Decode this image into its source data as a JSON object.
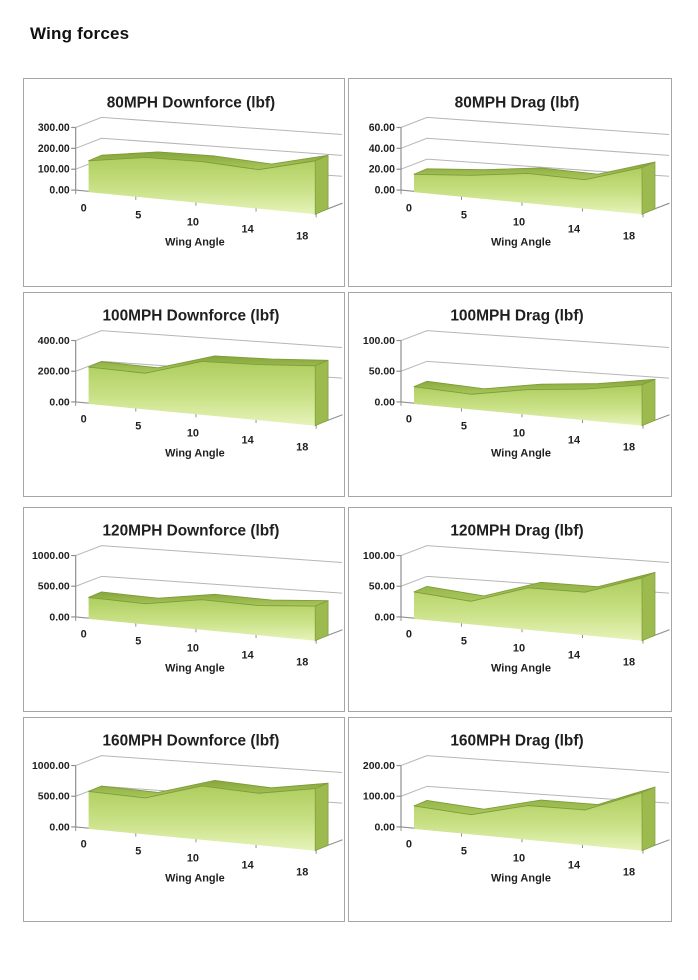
{
  "page": {
    "title": "Wing forces"
  },
  "axis": {
    "xlabel": "Wing Angle",
    "categories": [
      "0",
      "5",
      "10",
      "14",
      "18"
    ]
  },
  "colors": {
    "band_dark": "#85a63c",
    "band_light": "#a9c75b",
    "face_top": "#aecd5e",
    "face_mid": "#c9e186",
    "face_bottom": "#e6f3b9",
    "side_face": "#9cba4e",
    "series_outline": "#7e9c39",
    "gridline": "#b6b6b6",
    "axis_line": "#8f8f8f",
    "text": "#1f1f1f",
    "chart_border": "#a6a6a6"
  },
  "chart_data": [
    {
      "type": "area",
      "title": "80MPH Downforce (lbf)",
      "x": [
        0,
        5,
        10,
        14,
        18
      ],
      "values": [
        150,
        180,
        175,
        155,
        200
      ],
      "y_tick_labels": [
        "0.00",
        "100.00",
        "200.00",
        "300.00"
      ],
      "ymax": 300,
      "ylim": [
        0,
        300
      ],
      "xlabel": "Wing Angle",
      "legend": "none",
      "grid": true
    },
    {
      "type": "area",
      "title": "80MPH Drag (lbf)",
      "x": [
        0,
        5,
        10,
        14,
        18
      ],
      "values": [
        17,
        20,
        25,
        23,
        35
      ],
      "y_tick_labels": [
        "0.00",
        "20.00",
        "40.00",
        "60.00"
      ],
      "ymax": 60,
      "ylim": [
        0,
        60
      ],
      "xlabel": "Wing Angle",
      "legend": "none",
      "grid": true
    },
    {
      "type": "area",
      "title": "100MPH Downforce (lbf)",
      "x": [
        0,
        5,
        10,
        14,
        18
      ],
      "values": [
        240,
        220,
        305,
        300,
        305
      ],
      "y_tick_labels": [
        "0.00",
        "200.00",
        "400.00"
      ],
      "ymax": 400,
      "ylim": [
        0,
        400
      ],
      "xlabel": "Wing Angle",
      "legend": "none",
      "grid": true
    },
    {
      "type": "area",
      "title": "100MPH Drag (lbf)",
      "x": [
        0,
        5,
        10,
        14,
        18
      ],
      "values": [
        28,
        23,
        36,
        42,
        52
      ],
      "y_tick_labels": [
        "0.00",
        "50.00",
        "100.00"
      ],
      "ymax": 100,
      "ylim": [
        0,
        100
      ],
      "xlabel": "Wing Angle",
      "legend": "none",
      "grid": true
    },
    {
      "type": "area",
      "title": "120MPH Downforce (lbf)",
      "x": [
        0,
        5,
        10,
        14,
        18
      ],
      "values": [
        350,
        315,
        430,
        400,
        440
      ],
      "y_tick_labels": [
        "0.00",
        "500.00",
        "1000.00"
      ],
      "ymax": 1000,
      "ylim": [
        0,
        1000
      ],
      "xlabel": "Wing Angle",
      "legend": "none",
      "grid": true
    },
    {
      "type": "area",
      "title": "120MPH Drag (lbf)",
      "x": [
        0,
        5,
        10,
        14,
        18
      ],
      "values": [
        44,
        35,
        60,
        58,
        80
      ],
      "y_tick_labels": [
        "0.00",
        "50.00",
        "100.00"
      ],
      "ymax": 100,
      "ylim": [
        0,
        100
      ],
      "xlabel": "Wing Angle",
      "legend": "none",
      "grid": true
    },
    {
      "type": "area",
      "title": "160MPH Downforce (lbf)",
      "x": [
        0,
        5,
        10,
        14,
        18
      ],
      "values": [
        610,
        555,
        770,
        700,
        790
      ],
      "y_tick_labels": [
        "0.00",
        "500.00",
        "1000.00"
      ],
      "ymax": 1000,
      "ylim": [
        0,
        1000
      ],
      "xlabel": "Wing Angle",
      "legend": "none",
      "grid": true
    },
    {
      "type": "area",
      "title": "160MPH Drag (lbf)",
      "x": [
        0,
        5,
        10,
        14,
        18
      ],
      "values": [
        75,
        60,
        98,
        95,
        148
      ],
      "y_tick_labels": [
        "0.00",
        "100.00",
        "200.00"
      ],
      "ymax": 200,
      "ylim": [
        0,
        200
      ],
      "xlabel": "Wing Angle",
      "legend": "none",
      "grid": true
    }
  ]
}
